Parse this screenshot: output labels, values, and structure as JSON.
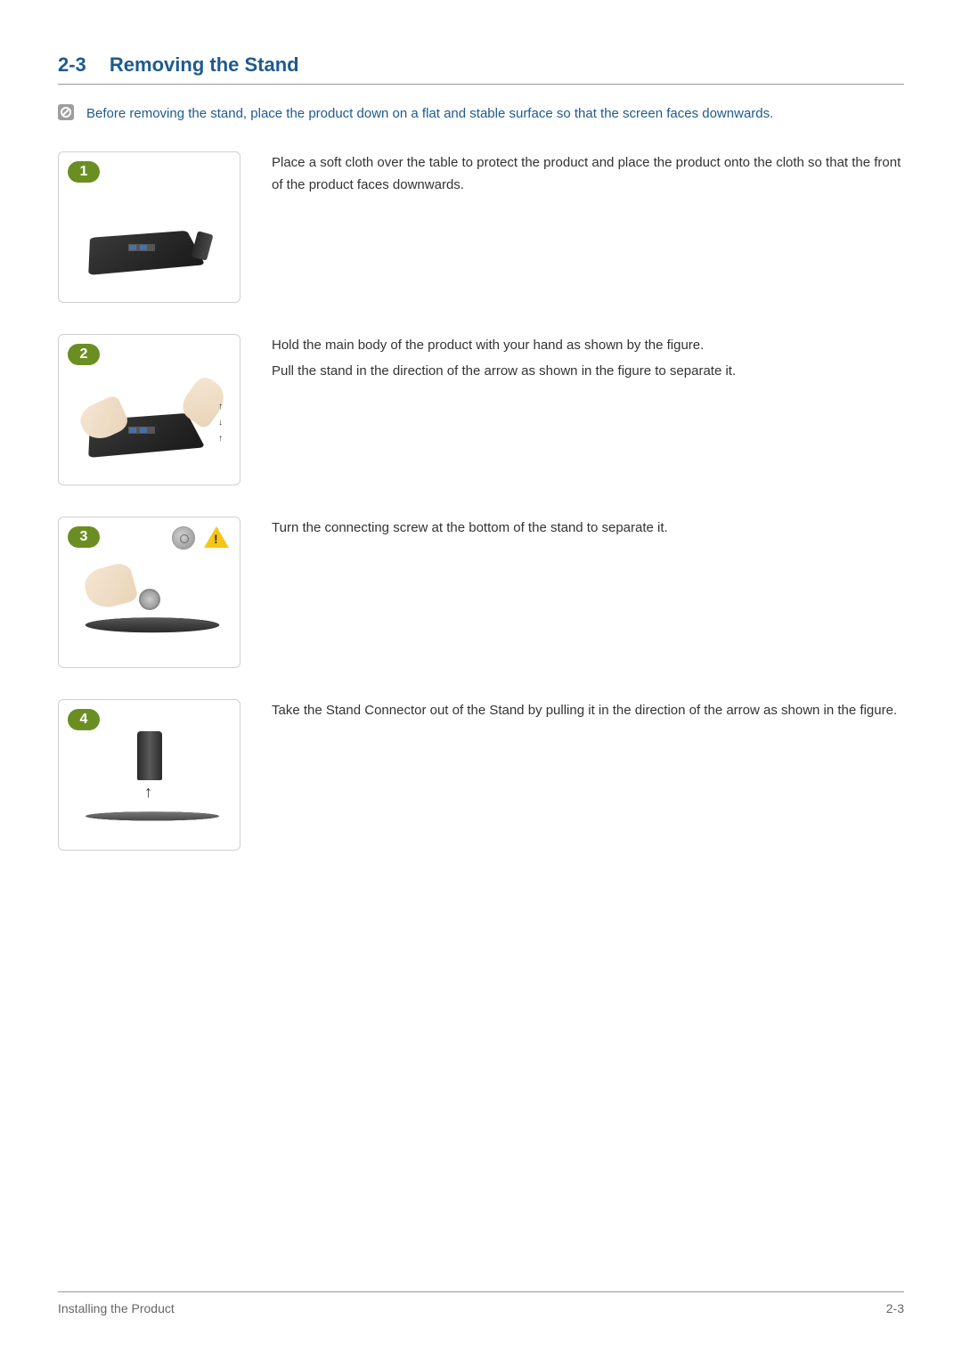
{
  "header": {
    "section_number": "2-3",
    "section_title": "Removing the Stand"
  },
  "note": {
    "text": "Before removing the stand, place the product down on a flat and stable surface so that the screen faces downwards."
  },
  "steps": [
    {
      "badge": "1",
      "lines": [
        "Place a soft cloth over the table to protect the product and place the product onto the cloth so that the front of the product faces downwards."
      ]
    },
    {
      "badge": "2",
      "lines": [
        "Hold the main body of the product with your hand as shown by the figure.",
        "Pull the stand in the direction of the arrow as shown in the figure to separate it."
      ]
    },
    {
      "badge": "3",
      "lines": [
        "Turn the connecting screw at the bottom of the stand to separate it."
      ]
    },
    {
      "badge": "4",
      "lines": [
        "Take the Stand Connector out of the Stand by pulling it in the direction of the arrow as shown in the figure."
      ]
    }
  ],
  "footer": {
    "left": "Installing the Product",
    "right": "2-3"
  },
  "colors": {
    "heading": "#1e5a8e",
    "body_text": "#333333",
    "border": "#999999",
    "badge_bg": "#6b8e23"
  }
}
